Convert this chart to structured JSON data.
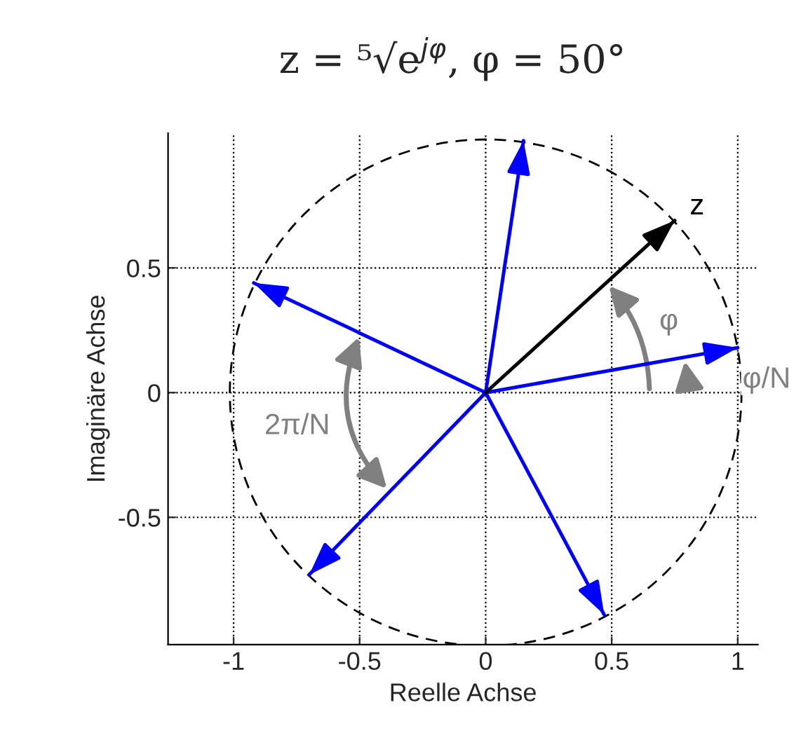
{
  "chart_data": {
    "type": "line",
    "title": "z = ⁵√e$^{jφ}$, φ = 50°",
    "xlabel": "Reelle Achse",
    "ylabel": "Imaginäre Achse",
    "xlim": [
      -1.26,
      1.08
    ],
    "ylim": [
      -1.01,
      1.04
    ],
    "xticks": [
      -1,
      -0.5,
      0,
      0.5,
      1
    ],
    "yticks": [
      -0.5,
      0,
      0.5
    ],
    "grid": true,
    "series": [
      {
        "color": "#0000ff",
        "x": [
          0,
          1.0
        ],
        "values": [
          0,
          0.18
        ]
      },
      {
        "color": "#0000ff",
        "x": [
          0,
          0.15
        ],
        "values": [
          0,
          1.01
        ]
      },
      {
        "color": "#0000ff",
        "x": [
          0,
          -0.92
        ],
        "values": [
          0,
          0.44
        ]
      },
      {
        "color": "#0000ff",
        "x": [
          0,
          -0.7
        ],
        "values": [
          0,
          -0.73
        ]
      },
      {
        "color": "#0000ff",
        "x": [
          0,
          0.47
        ],
        "values": [
          0,
          -0.89
        ]
      },
      {
        "color": "#000000",
        "x": [
          0,
          0.75
        ],
        "values": [
          0,
          0.69
        ]
      }
    ],
    "annotations": [
      "z",
      "φ",
      "φ/N",
      "2π/N"
    ]
  }
}
